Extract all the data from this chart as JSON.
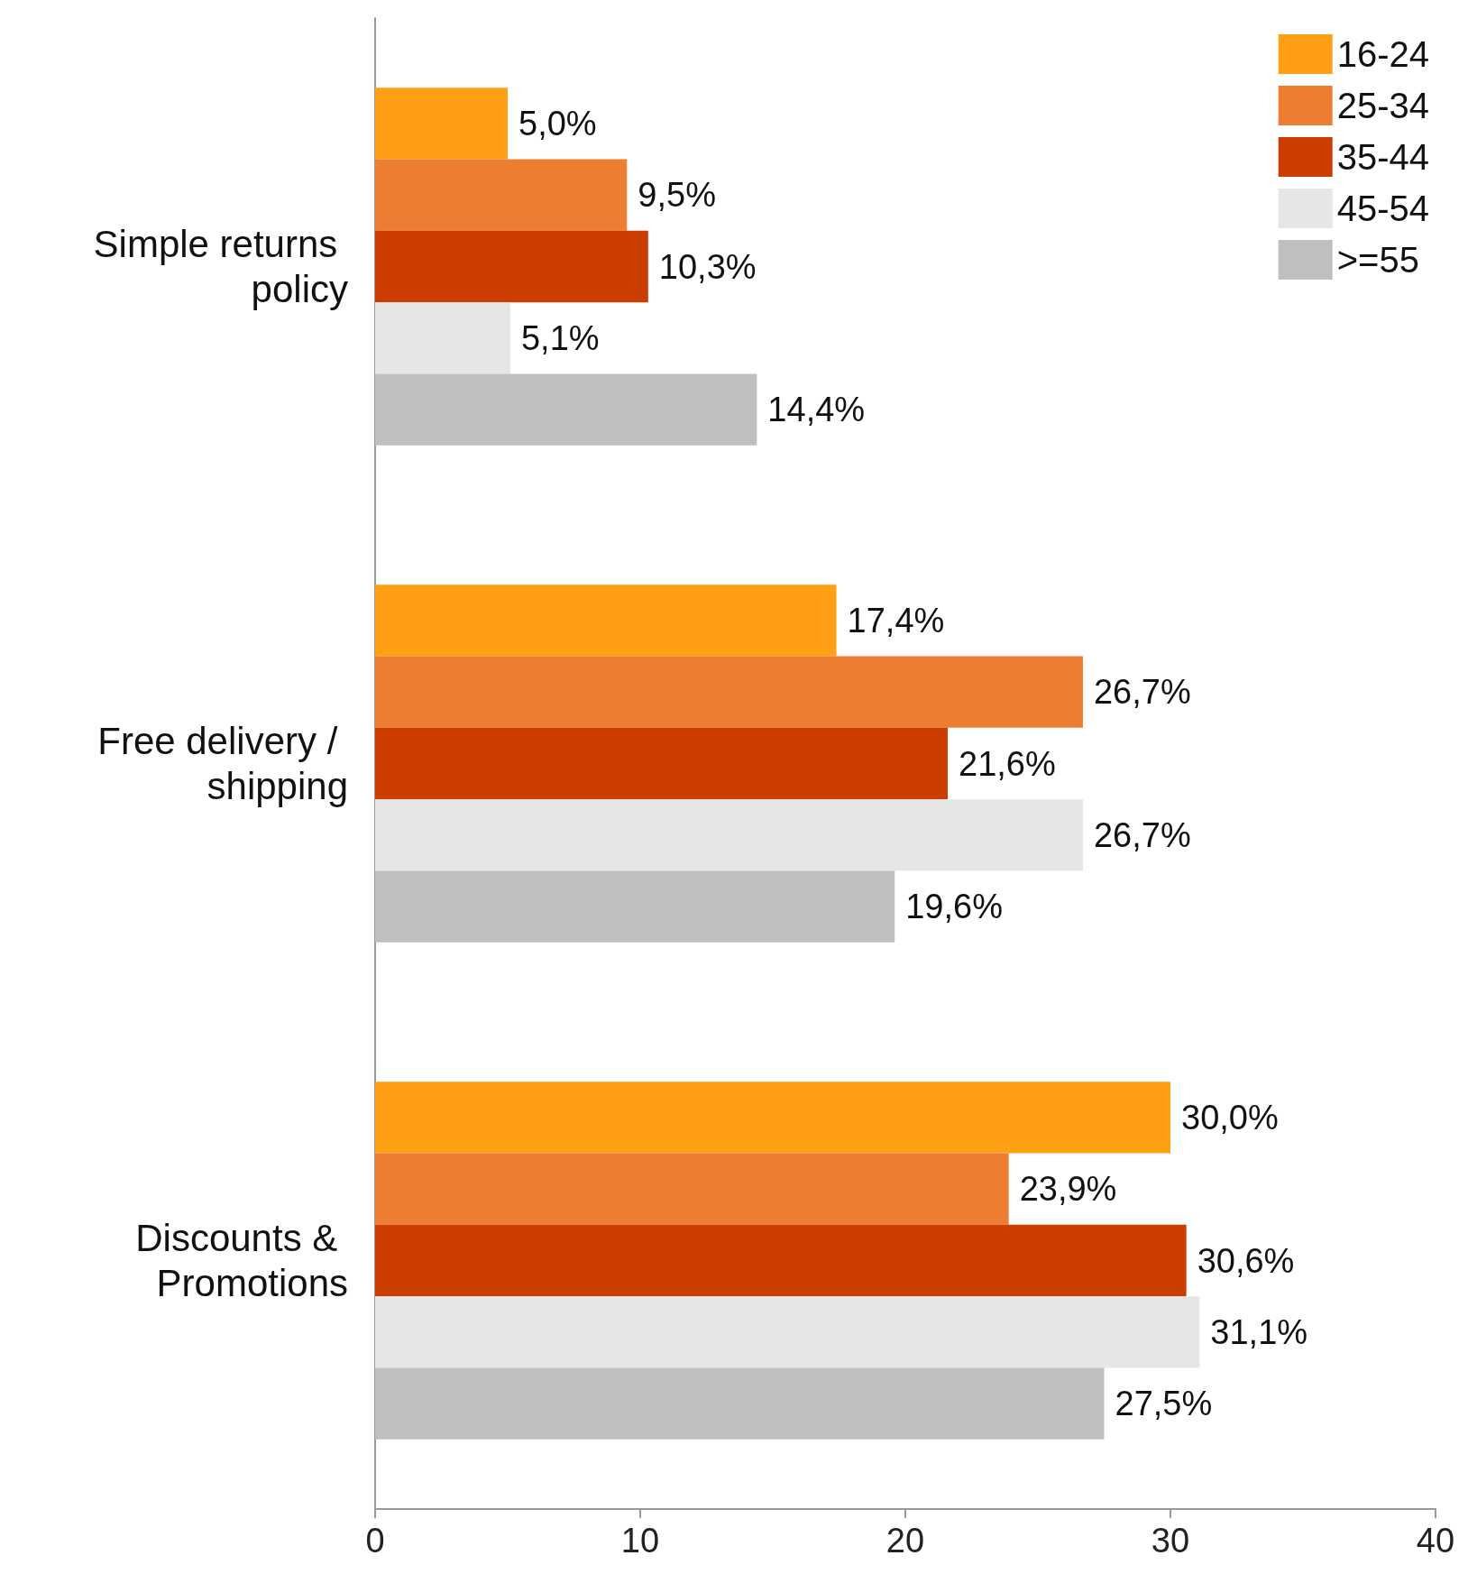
{
  "chart_data": {
    "type": "bar",
    "orientation": "horizontal",
    "categories": [
      "Simple returns policy",
      "Free delivery / shipping",
      "Discounts & Promotions"
    ],
    "series": [
      {
        "name": "16-24",
        "color": "#ffa014",
        "values": [
          5.0,
          17.4,
          30.0
        ],
        "value_labels": [
          "5,0%",
          "17,4%",
          "30,0%"
        ]
      },
      {
        "name": "25-34",
        "color": "#ed7d31",
        "values": [
          9.5,
          26.7,
          23.9
        ],
        "value_labels": [
          "9,5%",
          "26,7%",
          "23,9%"
        ]
      },
      {
        "name": "35-44",
        "color": "#cc3d00",
        "values": [
          10.3,
          21.6,
          30.6
        ],
        "value_labels": [
          "10,3%",
          "21,6%",
          "30,6%"
        ]
      },
      {
        "name": "45-54",
        "color": "#e6e6e6",
        "values": [
          5.1,
          26.7,
          31.1
        ],
        "value_labels": [
          "5,1%",
          "26,7%",
          "31,1%"
        ]
      },
      {
        "name": ">=55",
        "color": "#bfbfbf",
        "values": [
          14.4,
          19.6,
          27.5
        ],
        "value_labels": [
          "14,4%",
          "19,6%",
          "27,5%"
        ]
      }
    ],
    "xlim": [
      0,
      40
    ],
    "xticks": [
      0,
      10,
      20,
      30,
      40
    ],
    "grid": false,
    "legend": "top right"
  }
}
